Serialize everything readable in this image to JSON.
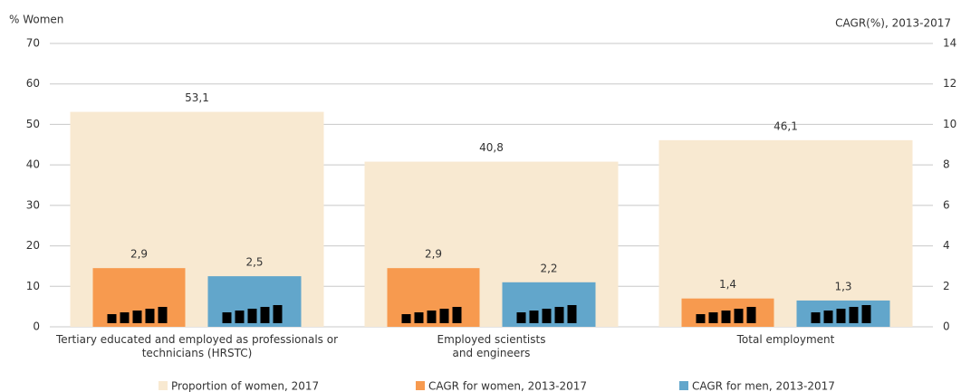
{
  "chart_data": {
    "type": "bar",
    "y_axis_label": "% Women",
    "y2_axis_label": "CAGR(%), 2013-2017",
    "categories": [
      "Tertiary educated and employed as professionals or\ntechnicians (HRSTC)",
      "Employed scientists\nand engineers",
      "Total employment"
    ],
    "series": [
      {
        "name": "Proportion of women, 2017",
        "color": "#f8e9d1",
        "values": [
          53.1,
          40.8,
          46.1
        ],
        "value_labels": [
          "53,1",
          "40,8",
          "46,1"
        ]
      },
      {
        "name": "CAGR for women, 2013-2017",
        "color": "#f79a4f",
        "values": [
          2.9,
          2.9,
          1.4
        ],
        "value_labels": [
          "2,9",
          "2,9",
          "1,4"
        ],
        "axis": "y2"
      },
      {
        "name": "CAGR for men, 2013-2017",
        "color": "#62a6cb",
        "values": [
          2.5,
          2.2,
          1.3
        ],
        "value_labels": [
          "2,5",
          "2,2",
          "1,3"
        ],
        "axis": "y2"
      }
    ],
    "ylim": [
      0,
      70
    ],
    "yticks": [
      0,
      10,
      20,
      30,
      40,
      50,
      60,
      70
    ],
    "y2lim": [
      0,
      14
    ],
    "y2ticks": [
      0,
      2,
      4,
      6,
      8,
      10,
      12,
      14
    ],
    "grid": true
  }
}
